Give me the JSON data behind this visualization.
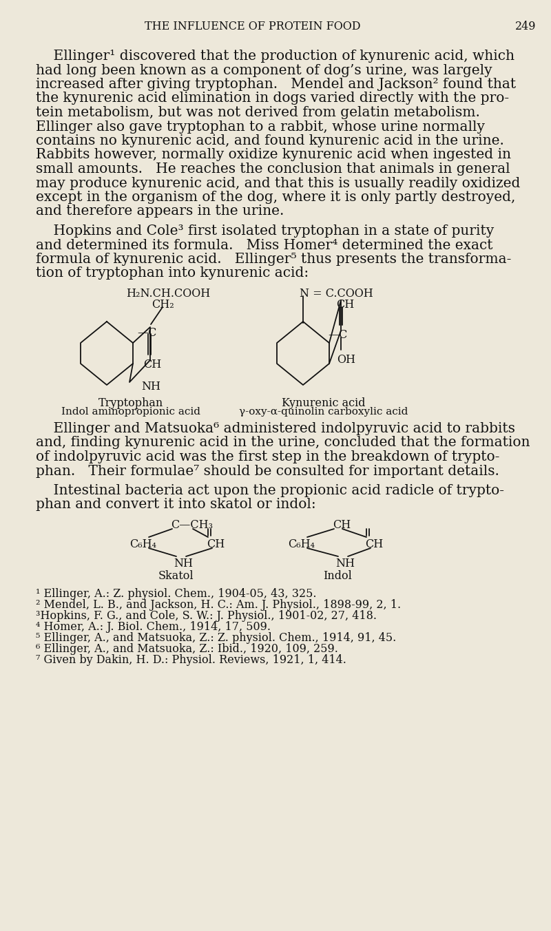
{
  "bg_color": "#ede8da",
  "text_color": "#111111",
  "header_title": "THE INFLUENCE OF PROTEIN FOOD",
  "header_page": "249",
  "para1": [
    "    Ellinger¹ discovered that the production of kynurenic acid, which",
    "had long been known as a component of dog’s urine, was largely",
    "increased after giving tryptophan.   Mendel and Jackson² found that",
    "the kynurenic acid elimination in dogs varied directly with the pro-",
    "tein metabolism, but was not derived from gelatin metabolism.",
    "Ellinger also gave tryptophan to a rabbit, whose urine normally",
    "contains no kynurenic acid, and found kynurenic acid in the urine.",
    "Rabbits however, normally oxidize kynurenic acid when ingested in",
    "small amounts.   He reaches the conclusion that animals in general",
    "may produce kynurenic acid, and that this is usually readily oxidized",
    "except in the organism of the dog, where it is only partly destroyed,",
    "and therefore appears in the urine."
  ],
  "para2": [
    "    Hopkins and Cole³ first isolated tryptophan in a state of purity",
    "and determined its formula.   Miss Homer⁴ determined the exact",
    "formula of kynurenic acid.   Ellinger⁵ thus presents the transforma-",
    "tion of tryptophan into kynurenic acid:"
  ],
  "para3": [
    "    Ellinger and Matsuoka⁶ administered indolpyruvic acid to rabbits",
    "and, finding kynurenic acid in the urine, concluded that the formation",
    "of indolpyruvic acid was the first step in the breakdown of trypto-",
    "phan.   Their formulae⁷ should be consulted for important details."
  ],
  "para4": [
    "    Intestinal bacteria act upon the propionic acid radicle of trypto-",
    "phan and convert it into skatol or indol:"
  ],
  "footnotes": [
    "¹ Ellinger, A.: Z. physiol. Chem., 1904-05, 43, 325.",
    "² Mendel, L. B., and Jackson, H. C.: Am. J. Physiol., 1898-99, 2, 1.",
    "³Hopkins, F. G., and Cole, S. W.: J. Physiol., 1901-02, 27, 418.",
    "⁴ Homer, A.: J. Biol. Chem., 1914, 17, 509.",
    "⁵ Ellinger, A., and Matsuoka, Z.: Z. physiol. Chem., 1914, 91, 45.",
    "⁶ Ellinger, A., and Matsuoka, Z.: Ibid., 1920, 109, 259.",
    "⁷ Given by Dakin, H. D.: Physiol. Reviews, 1921, 1, 414."
  ]
}
